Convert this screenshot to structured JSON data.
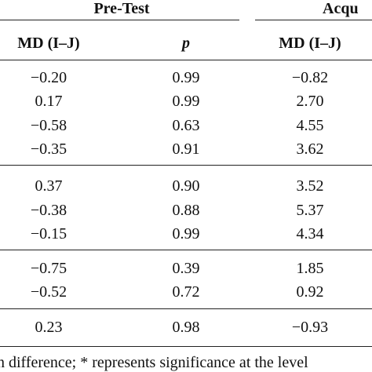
{
  "header": {
    "groups": [
      "Pre-Test",
      "Acqu"
    ],
    "columns": [
      "MD (I–J)",
      "p",
      "MD (I–J)"
    ]
  },
  "table": {
    "groups": [
      [
        [
          "−0.20",
          "0.99",
          "−0.82"
        ],
        [
          "0.17",
          "0.99",
          "2.70"
        ],
        [
          "−0.58",
          "0.63",
          "4.55"
        ],
        [
          "−0.35",
          "0.91",
          "3.62"
        ]
      ],
      [
        [
          "0.37",
          "0.90",
          "3.52"
        ],
        [
          "−0.38",
          "0.88",
          "5.37"
        ],
        [
          "−0.15",
          "0.99",
          "4.34"
        ]
      ],
      [
        [
          "−0.75",
          "0.39",
          "1.85"
        ],
        [
          "−0.52",
          "0.72",
          "0.92"
        ]
      ],
      [
        [
          "0.23",
          "0.98",
          "−0.93"
        ]
      ]
    ]
  },
  "footer": "n difference; * represents significance at the level"
}
